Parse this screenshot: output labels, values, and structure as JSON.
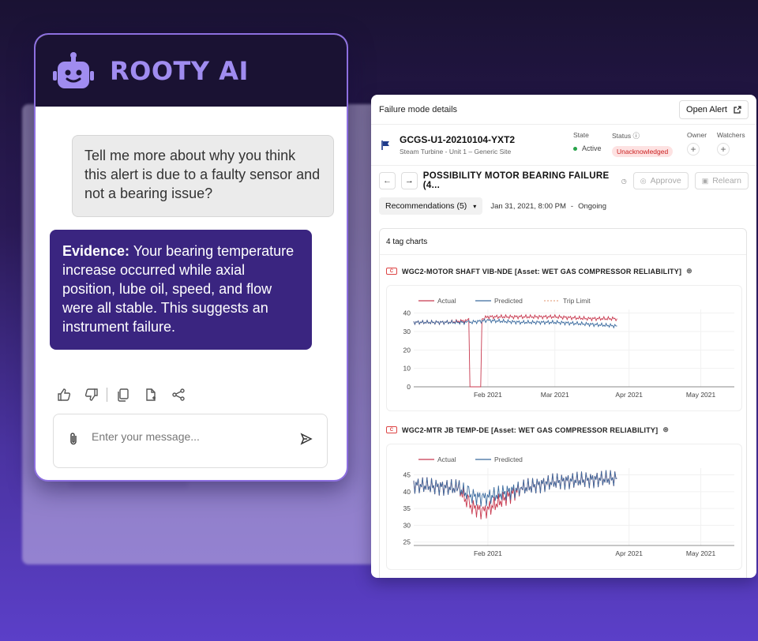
{
  "chat": {
    "title": "ROOTY AI",
    "user_message": "Tell me more about why you think this alert is due to a faulty sensor and not a bearing issue?",
    "bot_label": "Evidence:",
    "bot_message": " Your bearing temperature increase occurred while axial position, lube oil, speed, and flow were all stable. This suggests an instrument failure.",
    "input_placeholder": "Enter your message...",
    "actions": [
      "thumbs-up-icon",
      "thumbs-down-icon",
      "copy-icon",
      "document-icon",
      "share-icon"
    ]
  },
  "details": {
    "header": "Failure mode details",
    "open_alert": "Open Alert",
    "alert_id": "GCGS-U1-20210104-YXT2",
    "alert_sub": "Steam Turbine - Unit 1 – Generic Site",
    "state_label": "State",
    "state_value": "Active",
    "status_label": "Status",
    "status_value": "Unacknowledged",
    "owner_label": "Owner",
    "watchers_label": "Watchers",
    "failure_mode": "POSSIBILITY MOTOR BEARING FAILURE (4...",
    "approve": "Approve",
    "relearn": "Relearn",
    "recommendations": "Recommendations (5)",
    "date": "Jan 31, 2021, 8:00 PM",
    "sep": "-",
    "ongoing": "Ongoing",
    "charts_count": "4 tag charts",
    "colors": {
      "actual": "#c8394f",
      "predicted": "#3a6a9e",
      "trip": "#e8a98a"
    }
  },
  "chart_data": [
    {
      "type": "line",
      "title": "WGC2-MOTOR SHAFT VIB-NDE [Asset: WET GAS COMPRESSOR RELIABILITY]",
      "legend": [
        "Actual",
        "Predicted",
        "Trip Limit"
      ],
      "x_ticks": [
        "Feb 2021",
        "Mar 2021",
        "Apr 2021",
        "May 2021"
      ],
      "y_ticks": [
        0,
        10,
        20,
        30,
        40
      ],
      "ylim": [
        0,
        42
      ],
      "series": [
        {
          "name": "Actual",
          "x": [
            "2021-01-01",
            "2021-01-15",
            "2021-01-24",
            "2021-01-25",
            "2021-01-29",
            "2021-01-30",
            "2021-02-01",
            "2021-02-15",
            "2021-03-01",
            "2021-03-15",
            "2021-03-27"
          ],
          "values": [
            35,
            35,
            36,
            0,
            0,
            37,
            38,
            38,
            38,
            37,
            37
          ]
        },
        {
          "name": "Predicted",
          "x": [
            "2021-01-01",
            "2021-01-15",
            "2021-01-24",
            "2021-02-01",
            "2021-02-15",
            "2021-03-01",
            "2021-03-15",
            "2021-03-27"
          ],
          "values": [
            35,
            35,
            35,
            36,
            35,
            35,
            34,
            33
          ]
        }
      ]
    },
    {
      "type": "line",
      "title": "WGC2-MTR JB TEMP-DE [Asset: WET GAS COMPRESSOR RELIABILITY]",
      "legend": [
        "Actual",
        "Predicted"
      ],
      "x_ticks": [
        "Feb 2021",
        "Apr 2021",
        "May 2021"
      ],
      "y_ticks": [
        25,
        30,
        35,
        40,
        45
      ],
      "ylim": [
        24,
        47
      ],
      "series": [
        {
          "name": "Actual",
          "x": [
            "2021-01-01",
            "2021-01-20",
            "2021-01-24",
            "2021-01-30",
            "2021-02-15",
            "2021-03-01",
            "2021-03-27"
          ],
          "values": [
            42,
            41,
            36,
            34,
            41,
            43,
            44
          ]
        },
        {
          "name": "Predicted",
          "x": [
            "2021-01-01",
            "2021-01-20",
            "2021-01-24",
            "2021-01-30",
            "2021-02-15",
            "2021-03-01",
            "2021-03-27"
          ],
          "values": [
            42,
            41,
            39,
            38,
            41,
            43,
            44
          ]
        }
      ]
    }
  ]
}
